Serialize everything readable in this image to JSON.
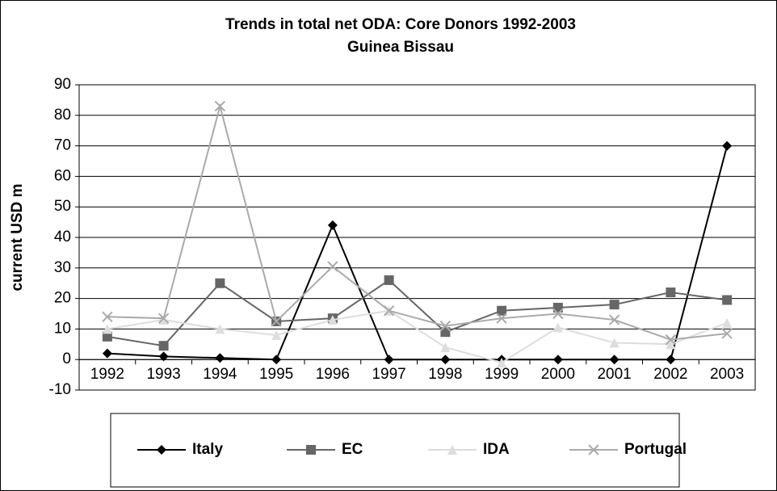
{
  "chart_data": {
    "type": "line",
    "title": "Trends in total net ODA: Core Donors 1992-2003",
    "subtitle": "Guinea Bissau",
    "y_label": "current USD m",
    "categories": [
      "1992",
      "1993",
      "1994",
      "1995",
      "1996",
      "1997",
      "1998",
      "1999",
      "2000",
      "2001",
      "2002",
      "2003"
    ],
    "series": [
      {
        "name": "Italy",
        "color": "#000000",
        "marker": "diamond",
        "values": [
          2,
          1,
          0.5,
          0,
          44,
          0,
          0,
          0,
          0,
          0,
          0,
          70
        ]
      },
      {
        "name": "EC",
        "color": "#666666",
        "marker": "square",
        "values": [
          7.5,
          4.5,
          25,
          12.5,
          13.5,
          26,
          9,
          16,
          17,
          18,
          22,
          19.5
        ]
      },
      {
        "name": "IDA",
        "color": "#dddddd",
        "marker": "triangle",
        "values": [
          10,
          13,
          10,
          8,
          13,
          16,
          4,
          -1,
          10.5,
          5.5,
          5,
          12
        ]
      },
      {
        "name": "Portugal",
        "color": "#aaaaaa",
        "marker": "x",
        "values": [
          14,
          13.5,
          83,
          12.5,
          30.5,
          16,
          11,
          13.5,
          15,
          13,
          6.5,
          8.5
        ]
      }
    ],
    "ylim": [
      -10,
      90
    ],
    "yticks": [
      -10,
      0,
      10,
      20,
      30,
      40,
      50,
      60,
      70,
      80,
      90
    ],
    "grid": true,
    "legend": "bottom"
  }
}
